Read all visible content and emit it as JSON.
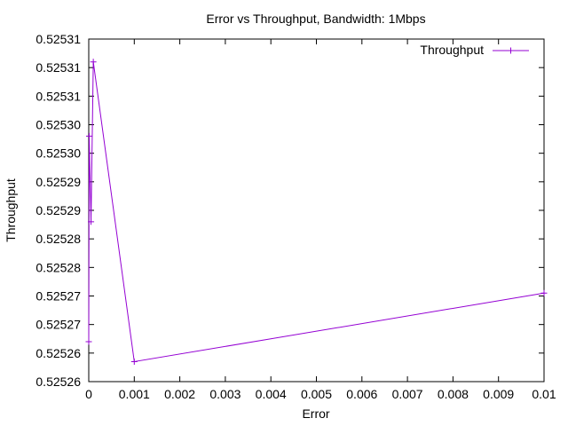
{
  "chart_data": {
    "type": "line",
    "title": "Error vs Throughput, Bandwidth: 1Mbps",
    "xlabel": "Error",
    "ylabel": "Throughput",
    "xlim": [
      0,
      0.01
    ],
    "ylim": [
      0.525255,
      0.525315
    ],
    "x_ticks": [
      {
        "value": 0,
        "label": "0"
      },
      {
        "value": 0.001,
        "label": "0.001"
      },
      {
        "value": 0.002,
        "label": "0.002"
      },
      {
        "value": 0.003,
        "label": "0.003"
      },
      {
        "value": 0.004,
        "label": "0.004"
      },
      {
        "value": 0.005,
        "label": "0.005"
      },
      {
        "value": 0.006,
        "label": "0.006"
      },
      {
        "value": 0.007,
        "label": "0.007"
      },
      {
        "value": 0.008,
        "label": "0.008"
      },
      {
        "value": 0.009,
        "label": "0.009"
      },
      {
        "value": 0.01,
        "label": "0.01"
      }
    ],
    "y_ticks": [
      {
        "value": 0.525255,
        "label": "0.52526"
      },
      {
        "value": 0.52526,
        "label": "0.52526"
      },
      {
        "value": 0.525265,
        "label": "0.52527"
      },
      {
        "value": 0.52527,
        "label": "0.52527"
      },
      {
        "value": 0.525275,
        "label": "0.52528"
      },
      {
        "value": 0.52528,
        "label": "0.52528"
      },
      {
        "value": 0.525285,
        "label": "0.52529"
      },
      {
        "value": 0.52529,
        "label": "0.52529"
      },
      {
        "value": 0.525295,
        "label": "0.52530"
      },
      {
        "value": 0.5253,
        "label": "0.52530"
      },
      {
        "value": 0.525305,
        "label": "0.52531"
      },
      {
        "value": 0.52531,
        "label": "0.52531"
      },
      {
        "value": 0.525315,
        "label": "0.52531"
      }
    ],
    "grid": false,
    "legend_position": "top-right",
    "series": [
      {
        "name": "Throughput",
        "color": "#9400d3",
        "marker": "plus",
        "points": [
          {
            "x": 0.0,
            "y": 0.525262
          },
          {
            "x": 1e-05,
            "y": 0.525298
          },
          {
            "x": 5e-05,
            "y": 0.525283
          },
          {
            "x": 0.0001,
            "y": 0.525311
          },
          {
            "x": 0.001,
            "y": 0.5252585
          },
          {
            "x": 0.01,
            "y": 0.5252705
          }
        ]
      }
    ]
  }
}
